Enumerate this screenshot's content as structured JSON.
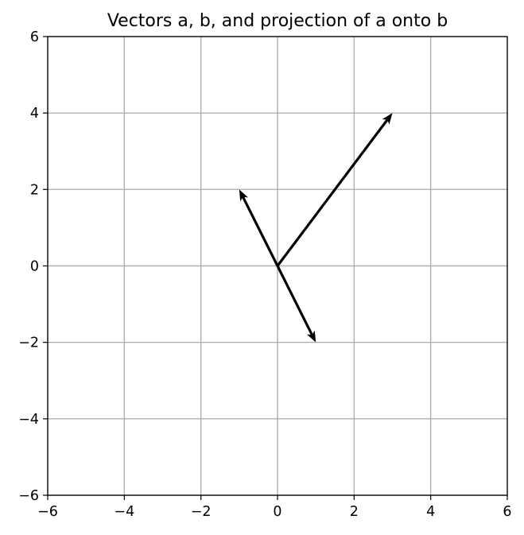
{
  "chart_data": {
    "type": "vector-plot",
    "title": "Vectors a, b, and projection of a onto b",
    "xlabel": "",
    "ylabel": "",
    "xlim": [
      -6,
      6
    ],
    "ylim": [
      -6,
      6
    ],
    "xticks": [
      -6,
      -4,
      -2,
      0,
      2,
      4,
      6
    ],
    "yticks": [
      -6,
      -4,
      -2,
      0,
      2,
      4,
      6
    ],
    "xtick_labels": [
      "−6",
      "−4",
      "−2",
      "0",
      "2",
      "4",
      "6"
    ],
    "ytick_labels": [
      "−6",
      "−4",
      "−2",
      "0",
      "2",
      "4",
      "6"
    ],
    "grid": true,
    "legend": "none",
    "vectors": [
      {
        "origin": [
          0,
          0
        ],
        "tip": [
          3,
          4
        ],
        "color": "#000000"
      },
      {
        "origin": [
          0,
          0
        ],
        "tip": [
          -1,
          2
        ],
        "color": "#000000"
      },
      {
        "origin": [
          0,
          0
        ],
        "tip": [
          1,
          -2
        ],
        "color": "#000000"
      }
    ]
  }
}
